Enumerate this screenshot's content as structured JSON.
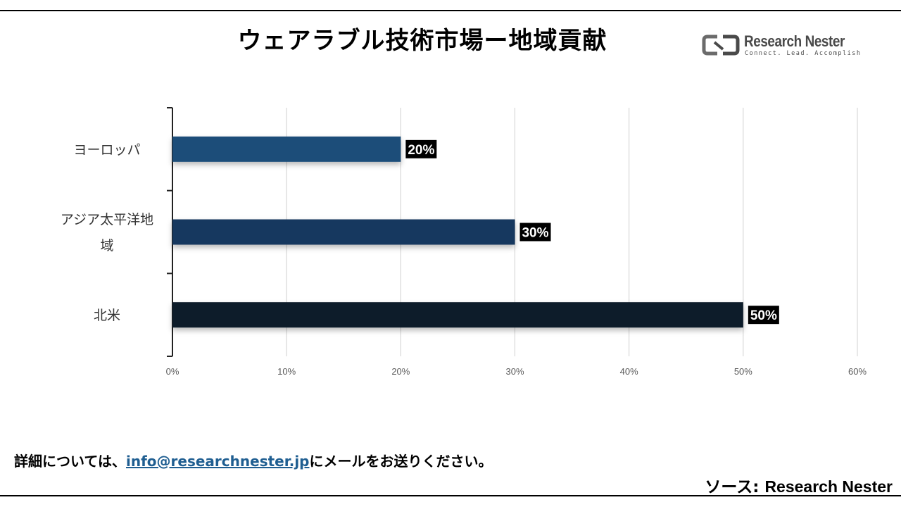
{
  "title": "ウェアラブル技術市場ー地域貢献",
  "logo": {
    "name": "Research Nester",
    "tagline": "Connect. Lead. Accomplish",
    "icon": "research-nester-logo-icon"
  },
  "chart_data": {
    "type": "bar",
    "orientation": "horizontal",
    "categories": [
      "ヨーロッパ",
      "アジア太平洋地域",
      "北米"
    ],
    "category_lines": [
      [
        "ヨーロッパ"
      ],
      [
        "アジア太平洋地",
        "域"
      ],
      [
        "北米"
      ]
    ],
    "values": [
      20,
      30,
      50
    ],
    "data_labels": [
      "20%",
      "30%",
      "50%"
    ],
    "bar_colors": [
      "#1f4e79",
      "#17375e",
      "#0c1a2b"
    ],
    "xlim": [
      0,
      60
    ],
    "xticks": [
      0,
      10,
      20,
      30,
      40,
      50,
      60
    ],
    "xtick_labels": [
      "0%",
      "10%",
      "20%",
      "30%",
      "40%",
      "50%",
      "60%"
    ],
    "grid": "vertical",
    "legend": "none",
    "xlabel": "",
    "ylabel": ""
  },
  "footer": {
    "prefix": "詳細については、",
    "email": "info@researchnester.jp",
    "suffix": "にメールをお送りください。"
  },
  "source": {
    "label": "ソース: ",
    "name": "Research Nester"
  }
}
